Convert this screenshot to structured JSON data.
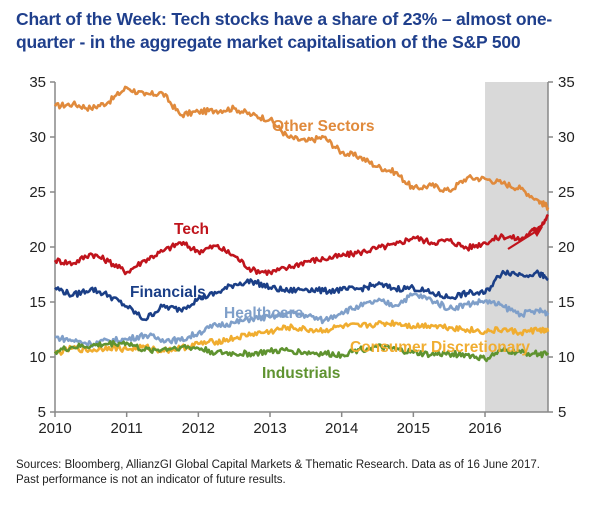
{
  "title": "Chart of the Week: Tech stocks have a share of 23% – almost one-quarter - in the aggregate market capitalisation of the S&P 500",
  "footer": {
    "sources": "Sources: Bloomberg, AllianzGI Global Capital Markets & Thematic Research. Data as of 16 June 2017.",
    "disclaimer": "Past performance is not an indicator of future results."
  },
  "chart_data": {
    "type": "line",
    "title": "Chart of the Week: Tech stocks have a share of 23% – almost one-quarter - in the aggregate market capitalisation of the S&P 500",
    "xlabel": "",
    "ylabel": "",
    "xlim": [
      2010,
      2016.88
    ],
    "ylim": [
      5,
      35
    ],
    "x_ticks": [
      "2010",
      "2011",
      "2012",
      "2013",
      "2014",
      "2015",
      "2016"
    ],
    "y_ticks": [
      "5",
      "10",
      "15",
      "20",
      "25",
      "30",
      "35"
    ],
    "y_axis_right_mirror": true,
    "grid": false,
    "legend": "inline labels",
    "highlight_region": {
      "x_start": 2016.0,
      "x_end": 2016.88,
      "color": "#d9d9d9"
    },
    "annotation": {
      "type": "arrow",
      "near_series": "Tech",
      "direction": "up-right",
      "color": "#c0141c"
    },
    "x": [
      2010.0,
      2010.25,
      2010.5,
      2010.75,
      2011.0,
      2011.25,
      2011.5,
      2011.75,
      2012.0,
      2012.25,
      2012.5,
      2012.75,
      2013.0,
      2013.25,
      2013.5,
      2013.75,
      2014.0,
      2014.25,
      2014.5,
      2014.75,
      2015.0,
      2015.25,
      2015.5,
      2015.75,
      2016.0,
      2016.25,
      2016.5,
      2016.75,
      2016.88
    ],
    "series": [
      {
        "name": "Other Sectors",
        "color": "#e08a3c",
        "values": [
          32.8,
          33.0,
          32.6,
          33.2,
          34.5,
          33.8,
          34.0,
          32.0,
          32.3,
          32.4,
          32.6,
          32.0,
          31.6,
          30.0,
          29.6,
          30.0,
          28.6,
          28.2,
          27.3,
          26.8,
          25.3,
          25.6,
          25.1,
          26.3,
          26.2,
          25.8,
          25.3,
          24.2,
          23.6
        ]
      },
      {
        "name": "Tech",
        "color": "#c0141c",
        "values": [
          18.8,
          18.5,
          19.4,
          18.7,
          17.7,
          18.8,
          19.6,
          20.4,
          19.6,
          20.1,
          19.2,
          17.9,
          17.7,
          18.1,
          18.7,
          18.9,
          19.2,
          19.5,
          19.9,
          20.2,
          20.9,
          20.4,
          20.6,
          19.9,
          20.4,
          21.0,
          20.7,
          21.8,
          22.8
        ]
      },
      {
        "name": "Financials",
        "color": "#1b3f87",
        "values": [
          16.3,
          15.6,
          16.2,
          15.6,
          14.6,
          13.4,
          14.6,
          14.3,
          15.3,
          15.8,
          16.6,
          16.9,
          16.3,
          16.0,
          16.2,
          16.0,
          16.1,
          16.2,
          16.6,
          16.2,
          16.3,
          15.8,
          15.4,
          15.8,
          15.8,
          17.8,
          17.5,
          17.6,
          17.0
        ]
      },
      {
        "name": "Healthcare",
        "color": "#7f9fc9",
        "values": [
          11.8,
          11.5,
          11.2,
          11.5,
          11.6,
          12.0,
          11.6,
          11.5,
          12.2,
          12.9,
          13.1,
          13.5,
          13.6,
          14.0,
          13.8,
          13.3,
          14.1,
          14.6,
          15.1,
          14.7,
          15.7,
          15.2,
          14.4,
          14.8,
          15.1,
          14.6,
          13.9,
          14.2,
          14.0
        ]
      },
      {
        "name": "Consumer Discretionary",
        "color": "#f0ad30",
        "values": [
          10.3,
          10.8,
          10.6,
          10.9,
          10.7,
          10.9,
          10.6,
          10.8,
          11.2,
          11.4,
          11.7,
          12.1,
          12.3,
          12.7,
          12.5,
          12.4,
          12.8,
          12.8,
          13.0,
          13.1,
          12.8,
          12.9,
          12.7,
          12.5,
          12.3,
          12.5,
          12.2,
          12.5,
          12.3
        ]
      },
      {
        "name": "Industrials",
        "color": "#5f9330",
        "values": [
          10.5,
          10.9,
          11.0,
          11.2,
          11.3,
          10.6,
          10.7,
          10.9,
          10.8,
          10.4,
          10.3,
          10.3,
          10.5,
          10.6,
          10.4,
          10.3,
          10.2,
          10.7,
          10.9,
          10.7,
          10.4,
          10.2,
          10.3,
          10.2,
          9.8,
          10.6,
          10.4,
          10.3,
          10.2
        ]
      }
    ],
    "series_labels": [
      "Other Sectors",
      "Tech",
      "Financials",
      "Healthcare",
      "Consumer Discretionary",
      "Industrials"
    ]
  }
}
